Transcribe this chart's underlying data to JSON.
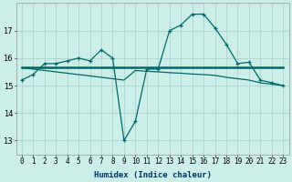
{
  "xlabel": "Humidex (Indice chaleur)",
  "background_color": "#cceee8",
  "grid_color": "#aad4ce",
  "line_color": "#006868",
  "x_values": [
    0,
    1,
    2,
    3,
    4,
    5,
    6,
    7,
    8,
    9,
    10,
    11,
    12,
    13,
    14,
    15,
    16,
    17,
    18,
    19,
    20,
    21,
    22,
    23
  ],
  "series1": [
    15.2,
    15.4,
    15.8,
    15.8,
    15.9,
    16.0,
    15.9,
    16.3,
    16.0,
    13.0,
    13.7,
    15.6,
    15.6,
    17.0,
    17.2,
    17.6,
    17.6,
    17.1,
    16.5,
    15.8,
    15.85,
    15.2,
    15.1,
    15.0
  ],
  "series2": [
    15.65,
    15.65,
    15.65,
    15.65,
    15.65,
    15.65,
    15.65,
    15.65,
    15.65,
    15.65,
    15.65,
    15.65,
    15.65,
    15.65,
    15.65,
    15.65,
    15.65,
    15.65,
    15.65,
    15.65,
    15.65,
    15.65,
    15.65,
    15.65
  ],
  "series3": [
    15.65,
    15.6,
    15.55,
    15.5,
    15.45,
    15.4,
    15.35,
    15.3,
    15.25,
    15.2,
    15.55,
    15.52,
    15.5,
    15.47,
    15.45,
    15.42,
    15.4,
    15.37,
    15.3,
    15.25,
    15.2,
    15.1,
    15.05,
    15.0
  ],
  "ylim": [
    12.5,
    18.0
  ],
  "yticks": [
    13,
    14,
    15,
    16,
    17
  ],
  "xticks": [
    0,
    1,
    2,
    3,
    4,
    5,
    6,
    7,
    8,
    9,
    10,
    11,
    12,
    13,
    14,
    15,
    16,
    17,
    18,
    19,
    20,
    21,
    22,
    23
  ],
  "tick_fontsize": 5.5,
  "label_fontsize": 6.5,
  "label_color": "#003366"
}
